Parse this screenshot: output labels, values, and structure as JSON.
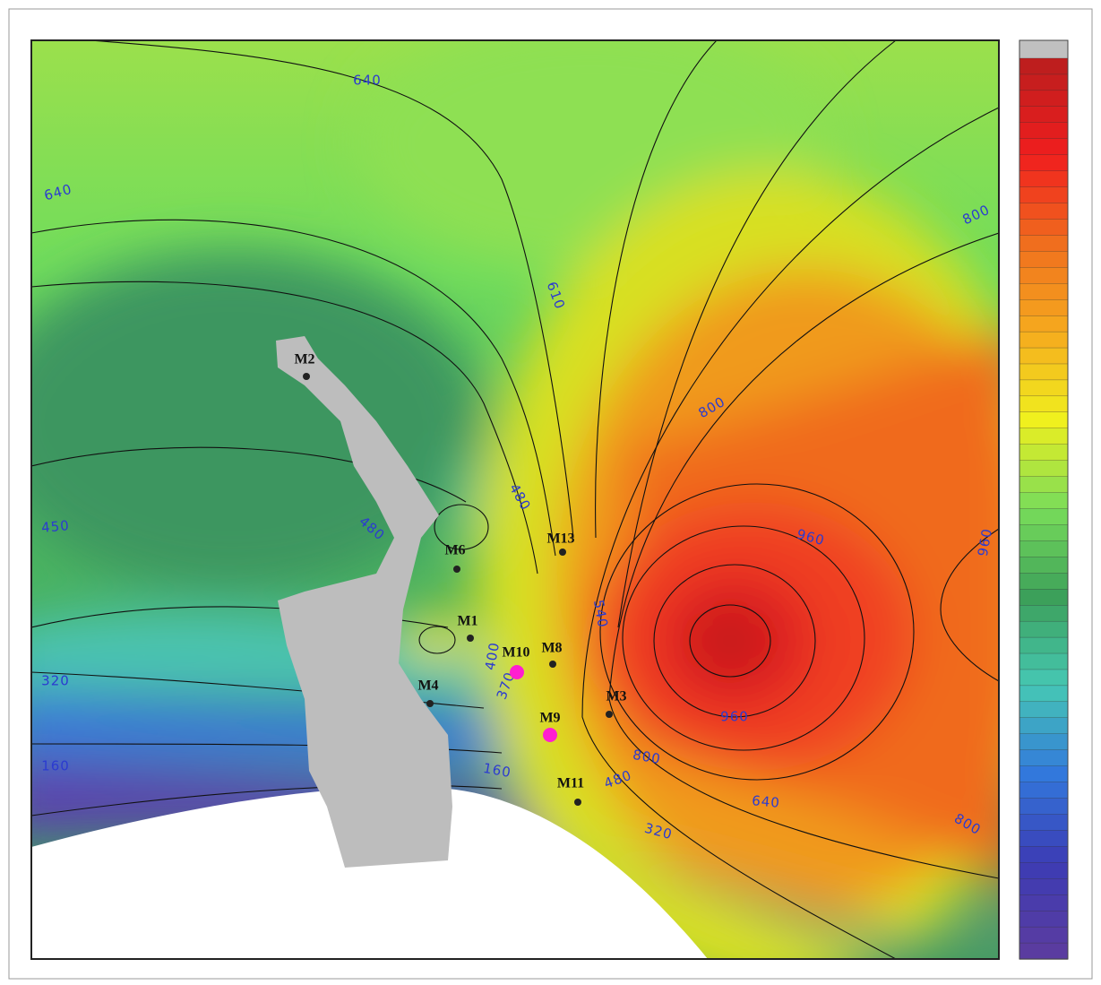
{
  "contour_labels": [
    "640",
    "640",
    "610",
    "800",
    "800",
    "480",
    "480",
    "450",
    "320",
    "160",
    "960",
    "960",
    "960",
    "800",
    "640",
    "480",
    "320",
    "800",
    "540",
    "370",
    "400",
    "160"
  ],
  "wells": [
    "M2",
    "M6",
    "M13",
    "M1",
    "M8",
    "M10",
    "M4",
    "M3",
    "M9",
    "M11"
  ]
}
